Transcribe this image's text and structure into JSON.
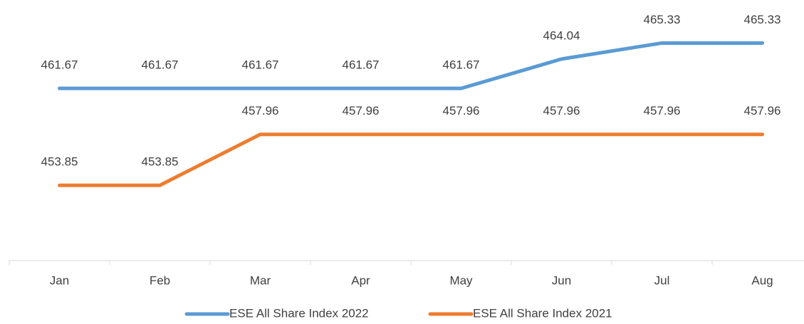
{
  "chart_data": {
    "type": "line",
    "categories": [
      "Jan",
      "Feb",
      "Mar",
      "Apr",
      "May",
      "Jun",
      "Jul",
      "Aug"
    ],
    "series": [
      {
        "name": "ESE All Share Index 2022",
        "color": "#5b9bd5",
        "values": [
          461.67,
          461.67,
          461.67,
          461.67,
          461.67,
          464.04,
          465.33,
          465.33
        ]
      },
      {
        "name": "ESE All Share Index 2021",
        "color": "#ed7d31",
        "values": [
          453.85,
          453.85,
          457.96,
          457.96,
          457.96,
          457.96,
          457.96,
          457.96
        ]
      }
    ],
    "ylim": [
      448,
      468
    ],
    "legend": "bottom"
  }
}
